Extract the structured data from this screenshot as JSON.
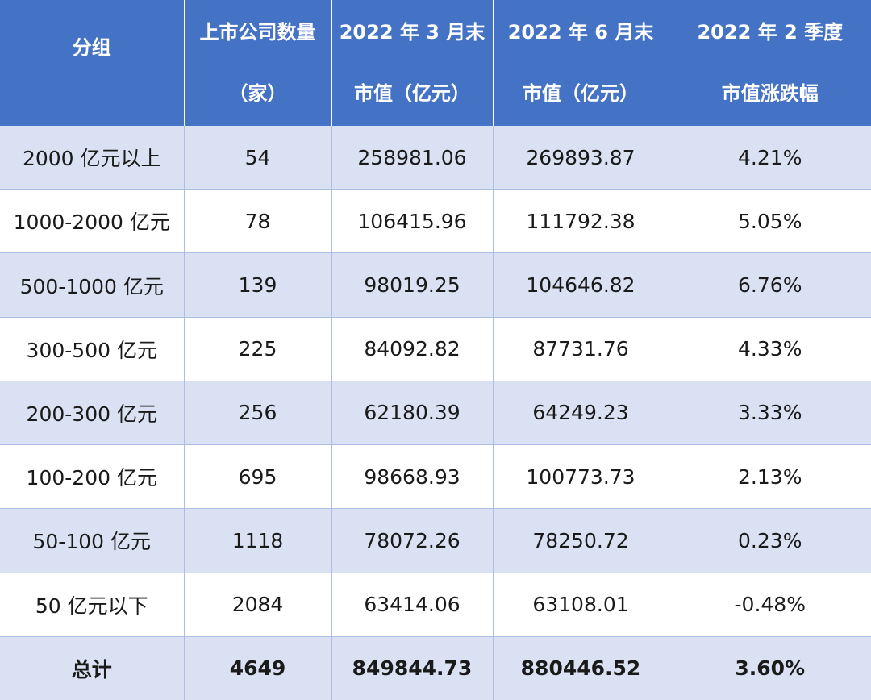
{
  "table": {
    "headers": [
      [
        "分组",
        ""
      ],
      [
        "上市公司数量",
        "（家）"
      ],
      [
        "2022 年 3 月末",
        "市值（亿元）"
      ],
      [
        "2022 年 6 月末",
        "市值（亿元）"
      ],
      [
        "2022 年 2 季度",
        "市值涨跌幅"
      ]
    ],
    "rows": [
      [
        "2000 亿元以上",
        "54",
        "258981.06",
        "269893.87",
        "4.21%"
      ],
      [
        "1000-2000 亿元",
        "78",
        "106415.96",
        "111792.38",
        "5.05%"
      ],
      [
        "500-1000 亿元",
        "139",
        "98019.25",
        "104646.82",
        "6.76%"
      ],
      [
        "300-500 亿元",
        "225",
        "84092.82",
        "87731.76",
        "4.33%"
      ],
      [
        "200-300 亿元",
        "256",
        "62180.39",
        "64249.23",
        "3.33%"
      ],
      [
        "100-200 亿元",
        "695",
        "98668.93",
        "100773.73",
        "2.13%"
      ],
      [
        "50-100 亿元",
        "1118",
        "78072.26",
        "78250.72",
        "0.23%"
      ],
      [
        "50 亿元以下",
        "2084",
        "63414.06",
        "63108.01",
        "-0.48%"
      ]
    ],
    "total": [
      "总计",
      "4649",
      "849844.73",
      "880446.52",
      "3.60%"
    ]
  },
  "colors": {
    "header_bg": "#4472c4",
    "header_text": "#ffffff",
    "band_row_bg": "#d9e1f2",
    "plain_row_bg": "#ffffff",
    "grid_line": "#aebde4"
  }
}
